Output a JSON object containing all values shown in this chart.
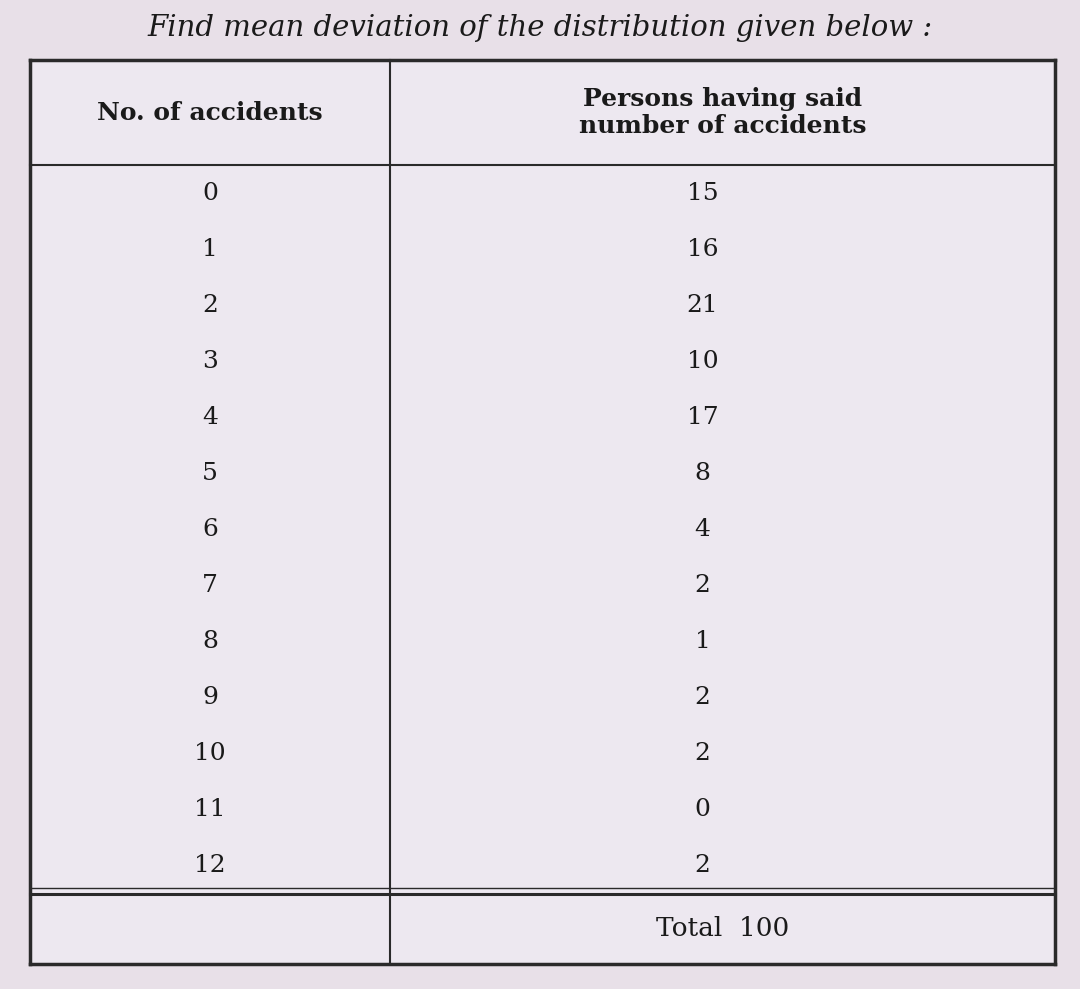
{
  "title": "Find mean deviation of the distribution given below :",
  "col1_header": "No. of accidents",
  "col2_header": "Persons having said\nnumber of accidents",
  "accidents": [
    "0",
    "1",
    "2",
    "3",
    "4",
    "5",
    "6",
    "7",
    "8",
    "9",
    "10",
    "11",
    "12"
  ],
  "persons": [
    "15",
    "16",
    "21",
    "10",
    "17",
    "8",
    "4",
    "2",
    "1",
    "2",
    "2",
    "0",
    "2"
  ],
  "total_label": "Total  100",
  "bg_color": "#e8e0e8",
  "table_bg": "#ede8f0",
  "text_color": "#1a1a1a",
  "title_fontsize": 21,
  "header_fontsize": 18,
  "cell_fontsize": 18,
  "total_fontsize": 19
}
